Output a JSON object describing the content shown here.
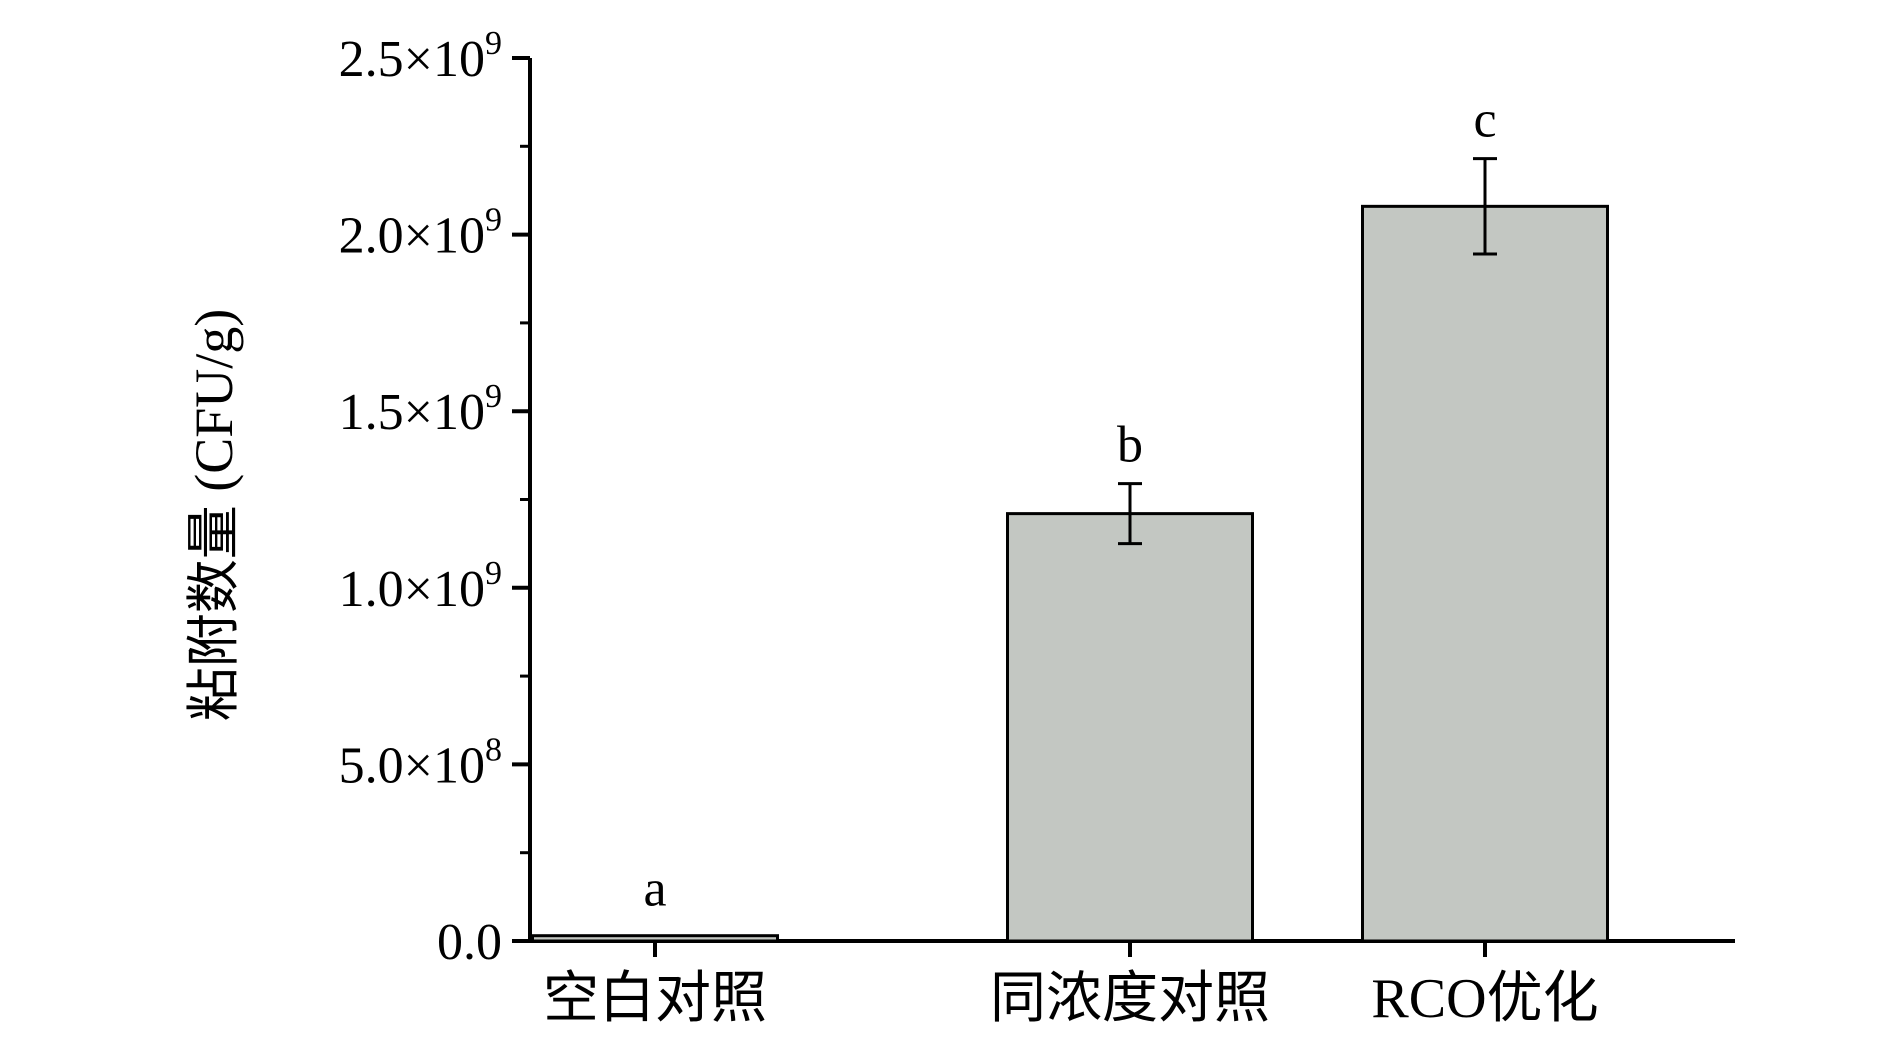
{
  "chart_data": {
    "type": "bar",
    "categories": [
      "空白对照",
      "同浓度对照",
      "RCO优化"
    ],
    "values": [
      15000000.0,
      1210000000.0,
      2080000000.0
    ],
    "errors": [
      0,
      85000000.0,
      135000000.0
    ],
    "significance": [
      "a",
      "b",
      "c"
    ],
    "title": "",
    "xlabel": "",
    "ylabel": "粘附数量 (CFU/g)",
    "ylim": [
      0,
      2500000000.0
    ],
    "y_ticks": [
      {
        "value": 0,
        "mantissa": "0.0",
        "exponent": ""
      },
      {
        "value": 500000000.0,
        "mantissa": "5.0×10",
        "exponent": "8"
      },
      {
        "value": 1000000000.0,
        "mantissa": "1.0×10",
        "exponent": "9"
      },
      {
        "value": 1500000000.0,
        "mantissa": "1.5×10",
        "exponent": "9"
      },
      {
        "value": 2000000000.0,
        "mantissa": "2.0×10",
        "exponent": "9"
      },
      {
        "value": 2500000000.0,
        "mantissa": "2.5×10",
        "exponent": "9"
      }
    ],
    "grid": false,
    "legend": "none",
    "bar_color": "#c3c7c2",
    "edge_color": "#000000"
  }
}
